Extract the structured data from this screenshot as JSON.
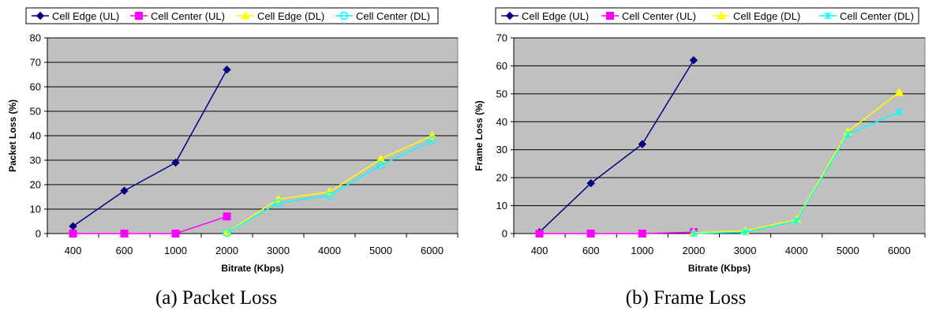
{
  "captions": [
    "(a) Packet Loss",
    "(b) Frame Loss"
  ],
  "colors": {
    "plot_background": "#c0c0c0",
    "cell_edge_ul": "#000080",
    "cell_center_ul": "#ff00ff",
    "cell_edge_dl": "#ffff00",
    "cell_center_dl": "#00ffff"
  },
  "chart_data": [
    {
      "type": "line",
      "xlabel": "Bitrate (Kbps)",
      "ylabel": "Packet Loss (%)",
      "categories": [
        "400",
        "600",
        "1000",
        "2000",
        "3000",
        "4000",
        "5000",
        "6000"
      ],
      "ylim": [
        0,
        80
      ],
      "yticks": [
        0,
        10,
        20,
        30,
        40,
        50,
        60,
        70,
        80
      ],
      "grid": true,
      "legend_position": "top",
      "series": [
        {
          "name": "Cell Edge (UL)",
          "marker": "diamond",
          "values": [
            3,
            17.5,
            29,
            67,
            null,
            null,
            null,
            null
          ]
        },
        {
          "name": "Cell Center (UL)",
          "marker": "square",
          "values": [
            0,
            0,
            0,
            7,
            null,
            null,
            null,
            null
          ]
        },
        {
          "name": "Cell Edge (DL)",
          "marker": "triangle",
          "values": [
            null,
            null,
            null,
            0.5,
            14,
            17,
            30.5,
            40
          ]
        },
        {
          "name": "Cell Center (DL)",
          "marker": "circle",
          "values": [
            null,
            null,
            null,
            0.3,
            12.5,
            15.5,
            28,
            38
          ]
        }
      ]
    },
    {
      "type": "line",
      "xlabel": "Bitrate (Kbps)",
      "ylabel": "Frame Loss (%)",
      "categories": [
        "400",
        "600",
        "1000",
        "2000",
        "3000",
        "4000",
        "5000",
        "6000"
      ],
      "ylim": [
        0,
        70
      ],
      "yticks": [
        0,
        10,
        20,
        30,
        40,
        50,
        60,
        70
      ],
      "grid": true,
      "legend_position": "top",
      "series": [
        {
          "name": "Cell Edge (UL)",
          "marker": "diamond",
          "values": [
            0.5,
            18,
            32,
            62,
            null,
            null,
            null,
            null
          ]
        },
        {
          "name": "Cell Center (UL)",
          "marker": "square",
          "values": [
            0,
            0,
            0,
            0.5,
            null,
            null,
            null,
            null
          ]
        },
        {
          "name": "Cell Edge (DL)",
          "marker": "triangle",
          "values": [
            null,
            null,
            null,
            0.3,
            1,
            5,
            36.5,
            50.5
          ]
        },
        {
          "name": "Cell Center (DL)",
          "marker": "star",
          "values": [
            null,
            null,
            null,
            0,
            0.5,
            4.5,
            35.5,
            43.5
          ]
        }
      ]
    }
  ]
}
